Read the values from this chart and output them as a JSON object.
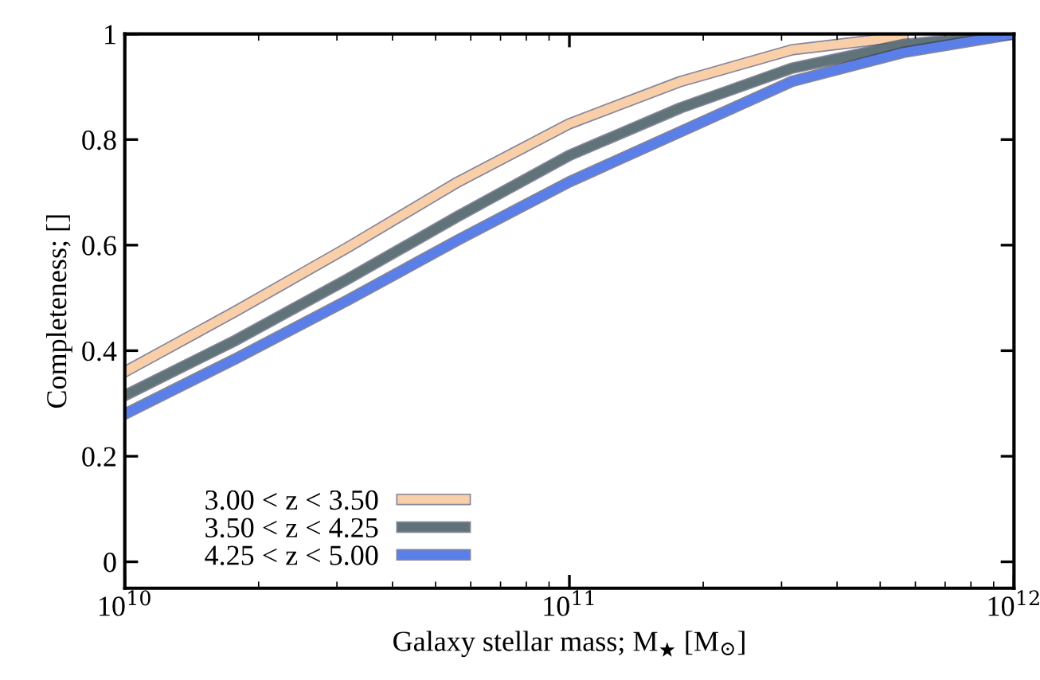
{
  "chart_data": {
    "type": "line",
    "xlabel": "Galaxy stellar mass; M$_{★}$ [M$_{⊙}$]",
    "ylabel": "Completeness; []",
    "x": [
      10000000000.0,
      17780000000.0,
      31620000000.0,
      56230000000.0,
      100000000000.0,
      177800000000.0,
      316200000000.0,
      562300000000.0,
      1000000000000.0
    ],
    "series": [
      {
        "name": "3.00 < z < 3.50",
        "color": "#f8cfa8",
        "values": [
          0.36,
          0.475,
          0.595,
          0.72,
          0.83,
          0.91,
          0.97,
          0.995,
          null
        ]
      },
      {
        "name": "3.50 < z < 4.25",
        "color": "#5f7379",
        "values": [
          0.315,
          0.42,
          0.535,
          0.655,
          0.77,
          0.86,
          0.935,
          0.98,
          1.0
        ]
      },
      {
        "name": "4.25 < z < 5.00",
        "color": "#5b7fe8",
        "values": [
          0.28,
          0.385,
          0.495,
          0.61,
          0.72,
          0.815,
          0.91,
          0.965,
          1.0
        ]
      }
    ],
    "log": "x",
    "xlim": [
      10000000000.0,
      1000000000000.0
    ],
    "xticks": [
      {
        "value": 10000000000.0,
        "label": "10$^{10}$"
      },
      {
        "value": 100000000000.0,
        "label": "10$^{11}$"
      },
      {
        "value": 1000000000000.0,
        "label": "10$^{12}$"
      }
    ],
    "ylim": [
      -0.05,
      1.0
    ],
    "yticks": [
      0,
      0.2,
      0.4,
      0.6,
      0.8,
      1
    ],
    "legend": "bottom left",
    "grid": false,
    "line_style": "solid",
    "marker": "none"
  }
}
